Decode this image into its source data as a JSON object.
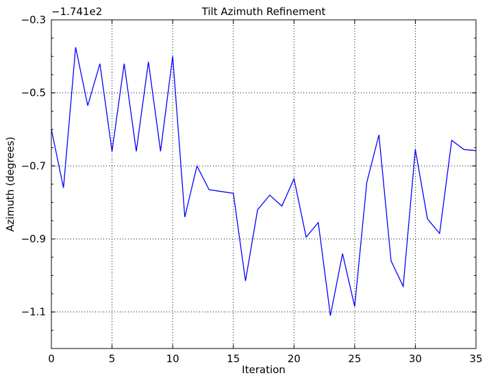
{
  "chart_data": {
    "type": "line",
    "title": "Tilt Azimuth Refinement",
    "xlabel": "Iteration",
    "ylabel": "Azimuth (degrees)",
    "y_offset_label": "−1.741e2",
    "xlim": [
      0,
      35
    ],
    "ylim": [
      -1.2,
      -0.3
    ],
    "x_ticks": [
      0,
      5,
      10,
      15,
      20,
      25,
      30,
      35
    ],
    "x_tick_labels": [
      "0",
      "5",
      "10",
      "15",
      "20",
      "25",
      "30",
      "35"
    ],
    "y_ticks": [
      -0.3,
      -0.5,
      -0.7,
      -0.9,
      -1.1
    ],
    "y_tick_labels": [
      "−0.3",
      "−0.5",
      "−0.7",
      "−0.9",
      "−1.1"
    ],
    "grid": true,
    "series": [
      {
        "color": "#0000ff",
        "x": [
          0,
          1,
          2,
          3,
          4,
          5,
          6,
          7,
          8,
          9,
          10,
          11,
          12,
          13,
          14,
          15,
          16,
          17,
          18,
          19,
          20,
          21,
          22,
          23,
          24,
          25,
          26,
          27,
          28,
          29,
          30,
          31,
          32,
          33,
          34,
          35
        ],
        "values": [
          -0.6,
          -0.76,
          -0.375,
          -0.535,
          -0.42,
          -0.66,
          -0.42,
          -0.66,
          -0.415,
          -0.66,
          -0.4,
          -0.84,
          -0.7,
          -0.765,
          -0.77,
          -0.775,
          -1.015,
          -0.82,
          -0.78,
          -0.81,
          -0.735,
          -0.895,
          -0.855,
          -1.11,
          -0.94,
          -1.085,
          -0.745,
          -0.615,
          -0.96,
          -1.03,
          -0.655,
          -0.845,
          -0.885,
          -0.63,
          -0.655,
          -0.658
        ]
      }
    ]
  }
}
